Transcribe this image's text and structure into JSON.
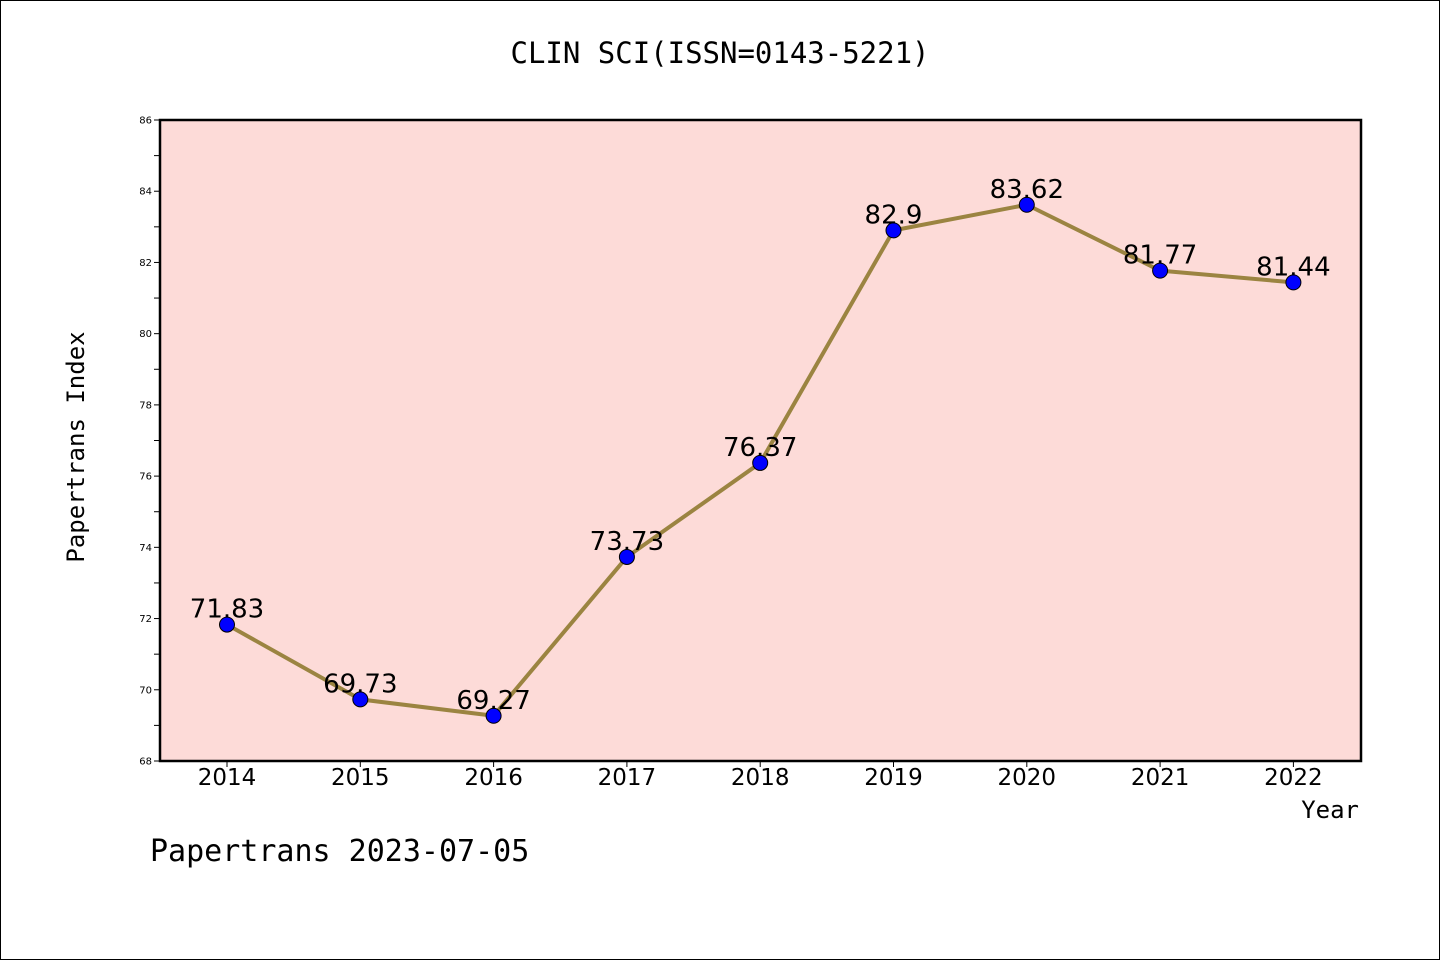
{
  "page": {
    "title": "CLIN SCI(ISSN=0143-5221)",
    "footer": "Papertrans 2023-07-05"
  },
  "colors": {
    "plot_background": "#fddbd8",
    "line": "#9b8441",
    "marker": "#0000ff",
    "axis": "#000000"
  },
  "chart_data": {
    "type": "line",
    "title": "CLIN SCI(ISSN=0143-5221)",
    "xlabel": "Year",
    "ylabel": "Papertrans Index",
    "categories": [
      "2014",
      "2015",
      "2016",
      "2017",
      "2018",
      "2019",
      "2020",
      "2021",
      "2022"
    ],
    "series": [
      {
        "values": [
          71.83,
          69.73,
          69.27,
          73.73,
          76.37,
          82.9,
          83.62,
          81.77,
          81.44
        ],
        "labels": [
          "71.83",
          "69.73",
          "69.27",
          "73.73",
          "76.37",
          "82.9",
          "83.62",
          "81.77",
          "81.44"
        ]
      }
    ],
    "ylim": [
      68,
      86
    ],
    "yticks": [
      "68",
      "70",
      "72",
      "74",
      "76",
      "78",
      "80",
      "82",
      "84",
      "86"
    ],
    "grid": false,
    "legend": "none"
  }
}
